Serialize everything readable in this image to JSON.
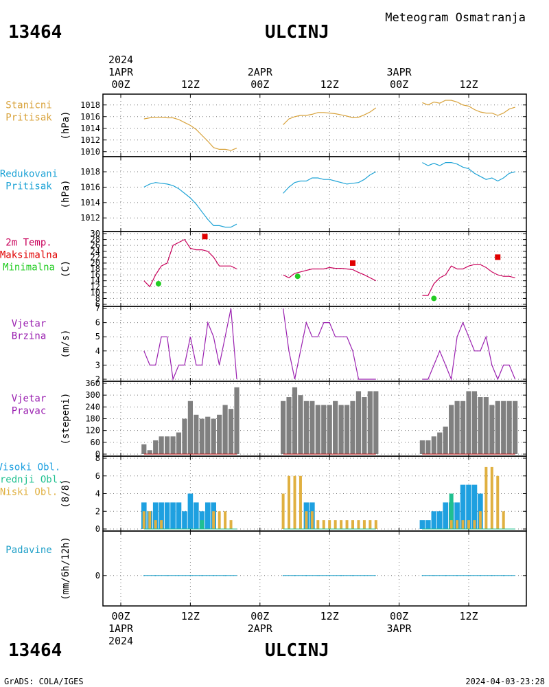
{
  "header": {
    "station_id": "13464",
    "station_name": "ULCINJ",
    "product_title": "Meteogram Osmatranja"
  },
  "footer": {
    "station_id": "13464",
    "station_name": "ULCINJ",
    "credit": "GrADS: COLA/IGES",
    "timestamp": "2024-04-03-23:28"
  },
  "time_axis": {
    "top_labels": [
      {
        "line1": "1APR",
        "line2": "00Z",
        "year": "2024"
      },
      {
        "line1": "",
        "line2": "12Z",
        "year": ""
      },
      {
        "line1": "2APR",
        "line2": "00Z",
        "year": ""
      },
      {
        "line1": "",
        "line2": "12Z",
        "year": ""
      },
      {
        "line1": "3APR",
        "line2": "00Z",
        "year": ""
      },
      {
        "line1": "",
        "line2": "12Z",
        "year": ""
      }
    ],
    "bottom_labels": [
      {
        "line1": "00Z",
        "line2": "1APR",
        "year": "2024"
      },
      {
        "line1": "12Z",
        "line2": "",
        "year": ""
      },
      {
        "line1": "00Z",
        "line2": "2APR",
        "year": ""
      },
      {
        "line1": "12Z",
        "line2": "",
        "year": ""
      },
      {
        "line1": "00Z",
        "line2": "3APR",
        "year": ""
      },
      {
        "line1": "12Z",
        "line2": "",
        "year": ""
      }
    ],
    "hours_at_major_ticks": [
      0,
      12,
      24,
      36,
      48,
      60
    ]
  },
  "colors": {
    "station_pressure": "#d8a23a",
    "msl_pressure": "#1ea3d6",
    "temperature": "#c8005a",
    "tmax": "#e00000",
    "tmin": "#22cc22",
    "wind_speed": "#9a20b0",
    "wind_dir": "#808080",
    "cloud_high": "#1ea0e0",
    "cloud_mid": "#20c090",
    "cloud_low": "#e0b040",
    "precip": "#20a0c8"
  },
  "chart_data": [
    {
      "type": "line",
      "panel": "station_pressure",
      "label_lines": [
        "Stanicni",
        "Pritisak"
      ],
      "ylabel": "(hPa)",
      "ylim": [
        1009.5,
        1019.5
      ],
      "yticks": [
        1010,
        1012,
        1014,
        1016,
        1018
      ],
      "grid": true,
      "series": [
        {
          "x": [
            4,
            5,
            6,
            7,
            8,
            9,
            10,
            11,
            12,
            13,
            14,
            15,
            16,
            17,
            18,
            19,
            20
          ],
          "values": [
            1015.6,
            1015.8,
            1015.9,
            1015.9,
            1015.8,
            1015.8,
            1015.5,
            1015.0,
            1014.5,
            1013.8,
            1012.8,
            1011.8,
            1010.7,
            1010.4,
            1010.4,
            1010.2,
            1010.6
          ]
        },
        {
          "x": [
            28,
            29,
            30,
            31,
            32,
            33,
            34,
            35,
            36,
            37,
            38,
            39,
            40,
            41,
            42,
            43,
            44
          ],
          "values": [
            1014.6,
            1015.6,
            1016.0,
            1016.2,
            1016.2,
            1016.4,
            1016.7,
            1016.7,
            1016.6,
            1016.5,
            1016.3,
            1016.1,
            1015.8,
            1015.9,
            1016.3,
            1016.8,
            1017.5
          ]
        },
        {
          "x": [
            52,
            53,
            54,
            55,
            56,
            57,
            58,
            59,
            60,
            61,
            62,
            63,
            64,
            65,
            66,
            67,
            68
          ],
          "values": [
            1018.4,
            1018.0,
            1018.5,
            1018.3,
            1018.8,
            1018.8,
            1018.5,
            1018.0,
            1017.8,
            1017.2,
            1016.8,
            1016.6,
            1016.6,
            1016.2,
            1016.6,
            1017.3,
            1017.6
          ]
        }
      ]
    },
    {
      "type": "line",
      "panel": "msl_pressure",
      "label_lines": [
        "Redukovani",
        "Pritisak"
      ],
      "ylabel": "(hPa)",
      "ylim": [
        1010.5,
        1019.7
      ],
      "yticks": [
        1012,
        1014,
        1016,
        1018
      ],
      "grid": true,
      "series": [
        {
          "x": [
            4,
            5,
            6,
            7,
            8,
            9,
            10,
            11,
            12,
            13,
            14,
            15,
            16,
            17,
            18,
            19,
            20
          ],
          "values": [
            1016.0,
            1016.4,
            1016.6,
            1016.5,
            1016.4,
            1016.2,
            1015.8,
            1015.2,
            1014.6,
            1013.8,
            1012.8,
            1011.8,
            1011.0,
            1011.0,
            1010.8,
            1010.8,
            1011.2
          ]
        },
        {
          "x": [
            28,
            29,
            30,
            31,
            32,
            33,
            34,
            35,
            36,
            37,
            38,
            39,
            40,
            41,
            42,
            43,
            44
          ],
          "values": [
            1015.2,
            1016.0,
            1016.6,
            1016.8,
            1016.8,
            1017.2,
            1017.2,
            1017.0,
            1017.0,
            1016.8,
            1016.6,
            1016.4,
            1016.5,
            1016.6,
            1017.0,
            1017.6,
            1018.0
          ]
        },
        {
          "x": [
            52,
            53,
            54,
            55,
            56,
            57,
            58,
            59,
            60,
            61,
            62,
            63,
            64,
            65,
            66,
            67,
            68
          ],
          "values": [
            1019.2,
            1018.8,
            1019.1,
            1018.8,
            1019.2,
            1019.2,
            1019.0,
            1018.6,
            1018.4,
            1017.8,
            1017.4,
            1017.0,
            1017.2,
            1016.8,
            1017.2,
            1017.8,
            1018.0
          ]
        }
      ]
    },
    {
      "type": "line",
      "panel": "temperature",
      "label_lines": [
        "2m Temp.",
        "Maksimalna",
        "Minimalna"
      ],
      "ylabel": "(C)",
      "ylim": [
        6,
        30
      ],
      "yticks": [
        6,
        8,
        10,
        12,
        14,
        16,
        18,
        20,
        22,
        24,
        26,
        28,
        30
      ],
      "grid": true,
      "series": [
        {
          "name": "2m Temp.",
          "x": [
            4,
            5,
            6,
            7,
            8,
            9,
            10,
            11,
            12,
            13,
            14,
            15,
            16,
            17,
            18,
            19,
            20
          ],
          "values": [
            14,
            12,
            16,
            19,
            20,
            26,
            27,
            28,
            25,
            24.5,
            24.5,
            24,
            22,
            19,
            19,
            19,
            18
          ]
        },
        {
          "name": "2m Temp.",
          "x": [
            28,
            29,
            30,
            31,
            32,
            33,
            34,
            35,
            36,
            37,
            38,
            39,
            40,
            41,
            42,
            43,
            44
          ],
          "values": [
            16,
            15,
            16.5,
            17,
            17.5,
            18,
            18,
            18,
            18.5,
            18.2,
            18.2,
            18,
            17.8,
            16.8,
            16.0,
            15.0,
            14.0
          ]
        },
        {
          "name": "2m Temp.",
          "x": [
            52,
            53,
            54,
            55,
            56,
            57,
            58,
            59,
            60,
            61,
            62,
            63,
            64,
            65,
            66,
            67,
            68
          ],
          "values": [
            9,
            9,
            13,
            15,
            16,
            19,
            18,
            18,
            19,
            19.5,
            19.5,
            18.5,
            17,
            16,
            15.5,
            15.5,
            15
          ]
        }
      ],
      "tmax": [
        {
          "x": 14.5,
          "value": 29
        },
        {
          "x": 40,
          "value": 20
        },
        {
          "x": 65,
          "value": 22
        }
      ],
      "tmin": [
        {
          "x": 6.5,
          "value": 13
        },
        {
          "x": 30.5,
          "value": 15.5
        },
        {
          "x": 54,
          "value": 8
        }
      ]
    },
    {
      "type": "line",
      "panel": "wind_speed",
      "label_lines": [
        "Vjetar",
        "Brzina"
      ],
      "ylabel": "(m/s)",
      "ylim": [
        2,
        7
      ],
      "yticks": [
        2,
        3,
        4,
        5,
        6,
        7
      ],
      "grid": true,
      "series": [
        {
          "x": [
            4,
            5,
            6,
            7,
            8,
            9,
            10,
            11,
            12,
            13,
            14,
            15,
            16,
            17,
            18,
            19,
            20
          ],
          "values": [
            4,
            3,
            3,
            5,
            5,
            2,
            3,
            3,
            5,
            3,
            3,
            6,
            5,
            3,
            5,
            7,
            2
          ]
        },
        {
          "x": [
            28,
            29,
            30,
            31,
            32,
            33,
            34,
            35,
            36,
            37,
            38,
            39,
            40,
            41,
            42,
            43,
            44
          ],
          "values": [
            7,
            4,
            2,
            4,
            6,
            5,
            5,
            6,
            6,
            5,
            5,
            5,
            4,
            2,
            2,
            2,
            2
          ]
        },
        {
          "x": [
            52,
            53,
            54,
            55,
            56,
            57,
            58,
            59,
            60,
            61,
            62,
            63,
            64,
            65,
            66,
            67,
            68
          ],
          "values": [
            2,
            2,
            3,
            4,
            3,
            2,
            5,
            6,
            5,
            4,
            4,
            5,
            3,
            2,
            3,
            3,
            2
          ]
        }
      ]
    },
    {
      "type": "bar",
      "panel": "wind_direction",
      "label_lines": [
        "Vjetar",
        "Pravac"
      ],
      "ylabel": "(stepeni)",
      "ylim": [
        0,
        360
      ],
      "yticks": [
        0,
        60,
        120,
        180,
        240,
        300,
        360
      ],
      "grid": true,
      "x": [
        4,
        5,
        6,
        7,
        8,
        9,
        10,
        11,
        12,
        13,
        14,
        15,
        16,
        17,
        18,
        19,
        20,
        28,
        29,
        30,
        31,
        32,
        33,
        34,
        35,
        36,
        37,
        38,
        39,
        40,
        41,
        42,
        43,
        44,
        52,
        53,
        54,
        55,
        56,
        57,
        58,
        59,
        60,
        61,
        62,
        63,
        64,
        65,
        66,
        67,
        68
      ],
      "values": [
        50,
        20,
        70,
        90,
        90,
        90,
        110,
        180,
        270,
        200,
        180,
        190,
        180,
        200,
        250,
        230,
        340,
        270,
        290,
        340,
        300,
        270,
        270,
        250,
        250,
        250,
        270,
        250,
        250,
        270,
        320,
        290,
        320,
        320,
        70,
        70,
        90,
        110,
        140,
        250,
        270,
        270,
        320,
        320,
        290,
        290,
        250,
        270,
        270,
        270,
        270
      ]
    },
    {
      "type": "bar",
      "panel": "cloud_cover",
      "label_lines": [
        "Visoki Obl.",
        "Srednji Obl.",
        "Niski Obl."
      ],
      "ylabel": "(8/8)",
      "ylim": [
        0,
        8
      ],
      "yticks": [
        0,
        2,
        4,
        6,
        8
      ],
      "grid": true,
      "x": [
        4,
        5,
        6,
        7,
        8,
        9,
        10,
        11,
        12,
        13,
        14,
        15,
        16,
        17,
        18,
        19,
        20,
        28,
        29,
        30,
        31,
        32,
        33,
        34,
        35,
        36,
        37,
        38,
        39,
        40,
        41,
        42,
        43,
        44,
        52,
        53,
        54,
        55,
        56,
        57,
        58,
        59,
        60,
        61,
        62,
        63,
        64,
        65,
        66,
        67,
        68
      ],
      "series": [
        {
          "name": "Visoki Obl.",
          "values": [
            3,
            2,
            3,
            3,
            3,
            3,
            3,
            2,
            4,
            3,
            2,
            3,
            3,
            0,
            0,
            0,
            0,
            0,
            0,
            0,
            0,
            3,
            3,
            0,
            0,
            0,
            0,
            0,
            0,
            0,
            0,
            0,
            0,
            0,
            1,
            1,
            2,
            2,
            3,
            3,
            3,
            5,
            5,
            5,
            4,
            0,
            0,
            0,
            0,
            0,
            0
          ]
        },
        {
          "name": "Srednji Obl.",
          "values": [
            0,
            0,
            0,
            0,
            0,
            0,
            0,
            0,
            0,
            0,
            1,
            0,
            0,
            0,
            0,
            0,
            0,
            0,
            0,
            0,
            0,
            0,
            0,
            0,
            0,
            0,
            0,
            0,
            0,
            0,
            0,
            0,
            0,
            0,
            0,
            0,
            0,
            0,
            0,
            4,
            0,
            0,
            0,
            0,
            0,
            0,
            0,
            0,
            0,
            0,
            0
          ]
        },
        {
          "name": "Niski Obl.",
          "values": [
            2,
            2,
            1,
            1,
            0,
            0,
            0,
            0,
            0,
            0,
            0,
            0,
            2,
            2,
            2,
            1,
            0,
            4,
            6,
            6,
            6,
            2,
            2,
            1,
            1,
            1,
            1,
            1,
            1,
            1,
            1,
            1,
            1,
            1,
            0,
            0,
            0,
            0,
            0,
            1,
            1,
            1,
            1,
            1,
            2,
            7,
            7,
            6,
            2,
            0,
            0
          ]
        }
      ]
    },
    {
      "type": "line",
      "panel": "precipitation",
      "label_lines": [
        "Padavine"
      ],
      "ylabel": "(mm/6h/12h)",
      "ylim": [
        -4,
        6
      ],
      "yticks": [
        0
      ],
      "grid": true,
      "series": [
        {
          "x": [
            4,
            20
          ],
          "values": [
            0,
            0
          ]
        },
        {
          "x": [
            28,
            44
          ],
          "values": [
            0,
            0
          ]
        },
        {
          "x": [
            52,
            68
          ],
          "values": [
            0,
            0
          ]
        }
      ]
    }
  ]
}
